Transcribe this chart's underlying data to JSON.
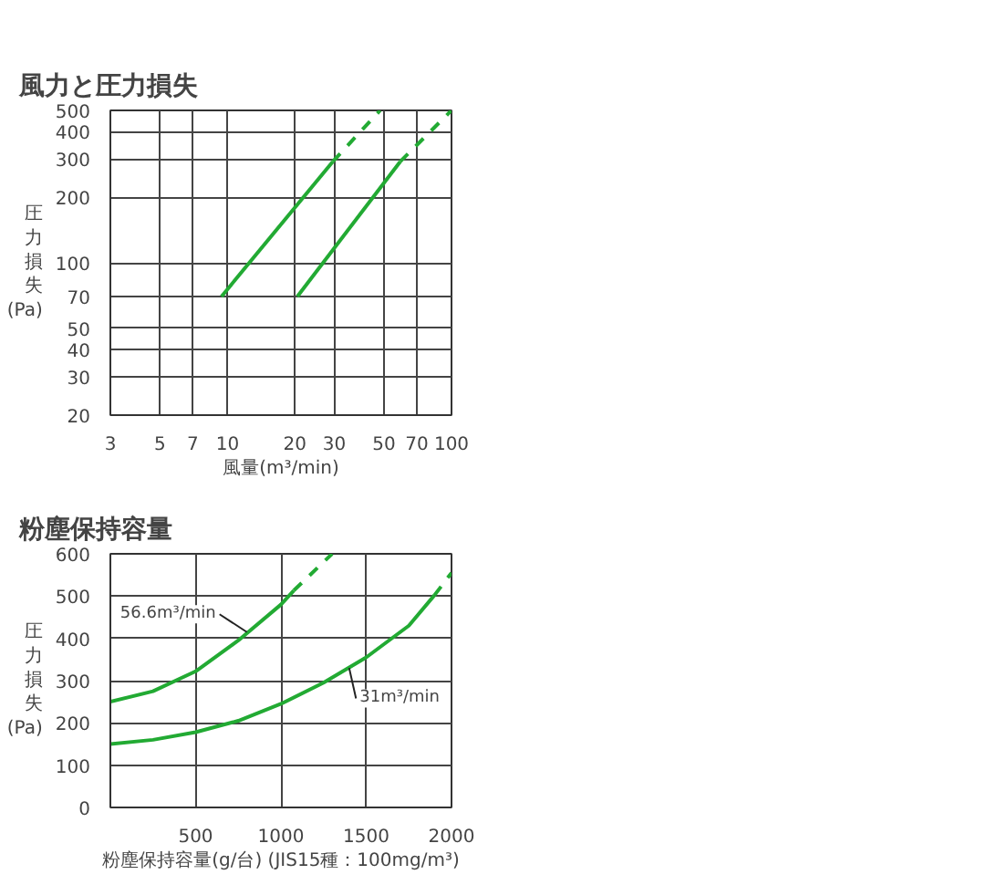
{
  "chart_data": [
    {
      "type": "line",
      "title": "風力と圧力損失",
      "xlabel": "風量(m³/min)",
      "ylabel": "圧力損失(Pa)",
      "log": "xy",
      "grid": true,
      "xlim": [
        3,
        100
      ],
      "ylim": [
        20,
        500
      ],
      "xticks": [
        3,
        5,
        7,
        10,
        20,
        30,
        50,
        70,
        100
      ],
      "yticks": [
        20,
        30,
        40,
        50,
        70,
        100,
        200,
        300,
        400,
        500
      ],
      "series": [
        {
          "color": "#22aa33",
          "line_style": "solid",
          "x": [
            9.4,
            29.5
          ],
          "values": [
            70,
            291
          ]
        },
        {
          "color": "#22aa33",
          "line_style": "dashed",
          "x": [
            29.5,
            48
          ],
          "values": [
            291,
            500
          ]
        },
        {
          "color": "#22aa33",
          "line_style": "solid",
          "x": [
            20.5,
            59
          ],
          "values": [
            70,
            291
          ]
        },
        {
          "color": "#22aa33",
          "line_style": "dashed",
          "x": [
            59,
            100
          ],
          "values": [
            291,
            500
          ]
        }
      ]
    },
    {
      "type": "line",
      "title": "粉塵保持容量",
      "xlabel": "粉塵保持容量(g/台) (JIS15種：100mg/m³)",
      "ylabel": "圧力損失(Pa)",
      "grid": true,
      "xlim": [
        0,
        2000
      ],
      "ylim": [
        0,
        600
      ],
      "xticks": [
        {
          "value": 0,
          "label": null
        },
        500,
        1000,
        1500,
        2000
      ],
      "yticks": [
        0,
        100,
        200,
        300,
        400,
        500,
        600
      ],
      "series": [
        {
          "color": "#22aa33",
          "line_style": "solid",
          "x": [
            0,
            250,
            500,
            750,
            1000,
            1075
          ],
          "values": [
            250,
            275,
            322,
            395,
            480,
            513
          ]
        },
        {
          "color": "#22aa33",
          "line_style": "dashed",
          "x": [
            1075,
            1300
          ],
          "values": [
            513,
            600
          ]
        },
        {
          "color": "#22aa33",
          "line_style": "solid",
          "x": [
            0,
            250,
            500,
            750,
            1000,
            1250,
            1500,
            1750,
            1900
          ],
          "values": [
            150,
            160,
            178,
            205,
            245,
            295,
            355,
            430,
            502
          ]
        },
        {
          "color": "#22aa33",
          "line_style": "dashed",
          "x": [
            1900,
            2000
          ],
          "values": [
            502,
            555
          ]
        }
      ],
      "annotations": [
        {
          "text": "56.6m³/min",
          "x": 800,
          "y": 415
        },
        {
          "text": "31m³/min",
          "x": 1400,
          "y": 330
        }
      ]
    }
  ]
}
